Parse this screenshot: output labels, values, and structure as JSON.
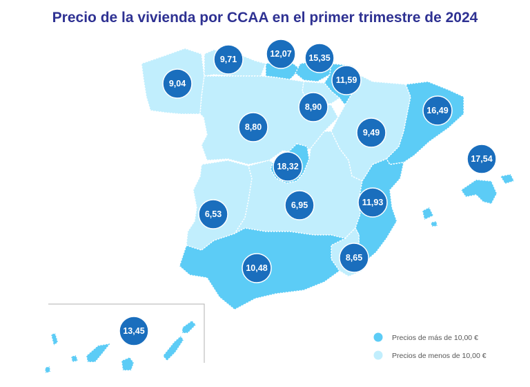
{
  "title": "Precio de la vivienda por CCAA en el primer trimestre de 2024",
  "colors": {
    "high": "#5cccf6",
    "low": "#c1eefd",
    "bubble": "#1a6ebd",
    "title": "#2e3192"
  },
  "regions": [
    {
      "id": "galicia",
      "price": "9,04",
      "category": "low"
    },
    {
      "id": "asturias",
      "price": "9,71",
      "category": "low"
    },
    {
      "id": "cantabria",
      "price": "12,07",
      "category": "high"
    },
    {
      "id": "pais-vasco",
      "price": "15,35",
      "category": "high"
    },
    {
      "id": "navarra",
      "price": "11,59",
      "category": "high"
    },
    {
      "id": "la-rioja",
      "price": "8,90",
      "category": "low"
    },
    {
      "id": "castilla-y-leon",
      "price": "8,80",
      "category": "low"
    },
    {
      "id": "aragon",
      "price": "9,49",
      "category": "low"
    },
    {
      "id": "cataluna",
      "price": "16,49",
      "category": "high"
    },
    {
      "id": "baleares",
      "price": "17,54",
      "category": "high"
    },
    {
      "id": "madrid",
      "price": "18,32",
      "category": "high"
    },
    {
      "id": "extremadura",
      "price": "6,53",
      "category": "low"
    },
    {
      "id": "castilla-la-mancha",
      "price": "6,95",
      "category": "low"
    },
    {
      "id": "comunidad-valenciana",
      "price": "11,93",
      "category": "high"
    },
    {
      "id": "murcia",
      "price": "8,65",
      "category": "low"
    },
    {
      "id": "andalucia",
      "price": "10,48",
      "category": "high"
    },
    {
      "id": "canarias",
      "price": "13,45",
      "category": "high"
    }
  ],
  "legend": {
    "high": "Precios de más de 10,00 €",
    "low": "Precios de menos de 10,00 €"
  }
}
